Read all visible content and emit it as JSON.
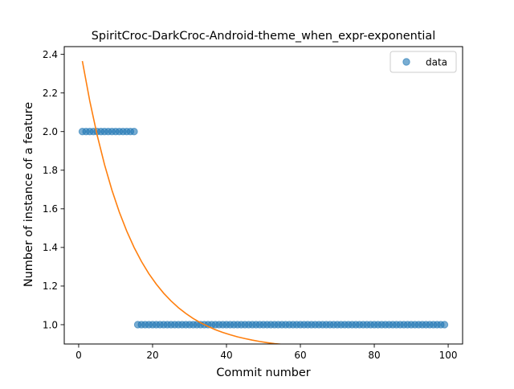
{
  "chart_data": {
    "type": "scatter",
    "title": "SpiritCroc-DarkCroc-Android-theme_when_expr-exponential",
    "xlabel": "Commit number",
    "ylabel": "Number of instance of a feature",
    "xlim": [
      -3.9,
      103.9
    ],
    "ylim": [
      0.9,
      2.44
    ],
    "xticks": [
      0,
      20,
      40,
      60,
      80,
      100
    ],
    "yticks": [
      1.0,
      1.2,
      1.4,
      1.6,
      1.8,
      2.0,
      2.2,
      2.4
    ],
    "grid": false,
    "legend": {
      "position": "top-right",
      "entries": [
        "data"
      ]
    },
    "series": [
      {
        "name": "data",
        "kind": "scatter",
        "color": "#1f77b4",
        "opacity": 0.6,
        "points": [
          [
            1,
            2
          ],
          [
            2,
            2
          ],
          [
            3,
            2
          ],
          [
            4,
            2
          ],
          [
            5,
            2
          ],
          [
            6,
            2
          ],
          [
            7,
            2
          ],
          [
            8,
            2
          ],
          [
            9,
            2
          ],
          [
            10,
            2
          ],
          [
            11,
            2
          ],
          [
            12,
            2
          ],
          [
            13,
            2
          ],
          [
            14,
            2
          ],
          [
            15,
            2
          ],
          [
            16,
            1
          ],
          [
            17,
            1
          ],
          [
            18,
            1
          ],
          [
            19,
            1
          ],
          [
            20,
            1
          ],
          [
            21,
            1
          ],
          [
            22,
            1
          ],
          [
            23,
            1
          ],
          [
            24,
            1
          ],
          [
            25,
            1
          ],
          [
            26,
            1
          ],
          [
            27,
            1
          ],
          [
            28,
            1
          ],
          [
            29,
            1
          ],
          [
            30,
            1
          ],
          [
            31,
            1
          ],
          [
            32,
            1
          ],
          [
            33,
            1
          ],
          [
            34,
            1
          ],
          [
            35,
            1
          ],
          [
            36,
            1
          ],
          [
            37,
            1
          ],
          [
            38,
            1
          ],
          [
            39,
            1
          ],
          [
            40,
            1
          ],
          [
            41,
            1
          ],
          [
            42,
            1
          ],
          [
            43,
            1
          ],
          [
            44,
            1
          ],
          [
            45,
            1
          ],
          [
            46,
            1
          ],
          [
            47,
            1
          ],
          [
            48,
            1
          ],
          [
            49,
            1
          ],
          [
            50,
            1
          ],
          [
            51,
            1
          ],
          [
            52,
            1
          ],
          [
            53,
            1
          ],
          [
            54,
            1
          ],
          [
            55,
            1
          ],
          [
            56,
            1
          ],
          [
            57,
            1
          ],
          [
            58,
            1
          ],
          [
            59,
            1
          ],
          [
            60,
            1
          ],
          [
            61,
            1
          ],
          [
            62,
            1
          ],
          [
            63,
            1
          ],
          [
            64,
            1
          ],
          [
            65,
            1
          ],
          [
            66,
            1
          ],
          [
            67,
            1
          ],
          [
            68,
            1
          ],
          [
            69,
            1
          ],
          [
            70,
            1
          ],
          [
            71,
            1
          ],
          [
            72,
            1
          ],
          [
            73,
            1
          ],
          [
            74,
            1
          ],
          [
            75,
            1
          ],
          [
            76,
            1
          ],
          [
            77,
            1
          ],
          [
            78,
            1
          ],
          [
            79,
            1
          ],
          [
            80,
            1
          ],
          [
            81,
            1
          ],
          [
            82,
            1
          ],
          [
            83,
            1
          ],
          [
            84,
            1
          ],
          [
            85,
            1
          ],
          [
            86,
            1
          ],
          [
            87,
            1
          ],
          [
            88,
            1
          ],
          [
            89,
            1
          ],
          [
            90,
            1
          ],
          [
            91,
            1
          ],
          [
            92,
            1
          ],
          [
            93,
            1
          ],
          [
            94,
            1
          ],
          [
            95,
            1
          ],
          [
            96,
            1
          ],
          [
            97,
            1
          ],
          [
            98,
            1
          ],
          [
            99,
            1
          ]
        ]
      },
      {
        "kind": "line",
        "color": "#ff7f0e",
        "points": [
          [
            1,
            2.365
          ],
          [
            3,
            2.159
          ],
          [
            5,
            1.982
          ],
          [
            7,
            1.829
          ],
          [
            9,
            1.697
          ],
          [
            11,
            1.583
          ],
          [
            13,
            1.485
          ],
          [
            15,
            1.4
          ],
          [
            17,
            1.327
          ],
          [
            19,
            1.264
          ],
          [
            21,
            1.21
          ],
          [
            23,
            1.163
          ],
          [
            25,
            1.123
          ],
          [
            27,
            1.088
          ],
          [
            29,
            1.058
          ],
          [
            31,
            1.032
          ],
          [
            33,
            1.01
          ],
          [
            35,
            0.991
          ],
          [
            37,
            0.974
          ],
          [
            39,
            0.96
          ],
          [
            41,
            0.948
          ],
          [
            43,
            0.937
          ],
          [
            45,
            0.928
          ],
          [
            47,
            0.92
          ],
          [
            49,
            0.913
          ],
          [
            51,
            0.907
          ],
          [
            53,
            0.902
          ],
          [
            55,
            0.898
          ],
          [
            57,
            0.894
          ],
          [
            59,
            0.891
          ],
          [
            61,
            0.888
          ],
          [
            63,
            0.885
          ],
          [
            65,
            0.883
          ],
          [
            67,
            0.881
          ],
          [
            69,
            0.88
          ],
          [
            71,
            0.878
          ],
          [
            73,
            0.877
          ],
          [
            75,
            0.876
          ],
          [
            77,
            0.875
          ],
          [
            79,
            0.874
          ],
          [
            81,
            0.874
          ],
          [
            83,
            0.873
          ],
          [
            85,
            0.873
          ],
          [
            87,
            0.872
          ],
          [
            89,
            0.872
          ],
          [
            91,
            0.871
          ],
          [
            93,
            0.871
          ],
          [
            95,
            0.871
          ],
          [
            97,
            0.871
          ],
          [
            99,
            0.87
          ]
        ]
      }
    ]
  }
}
